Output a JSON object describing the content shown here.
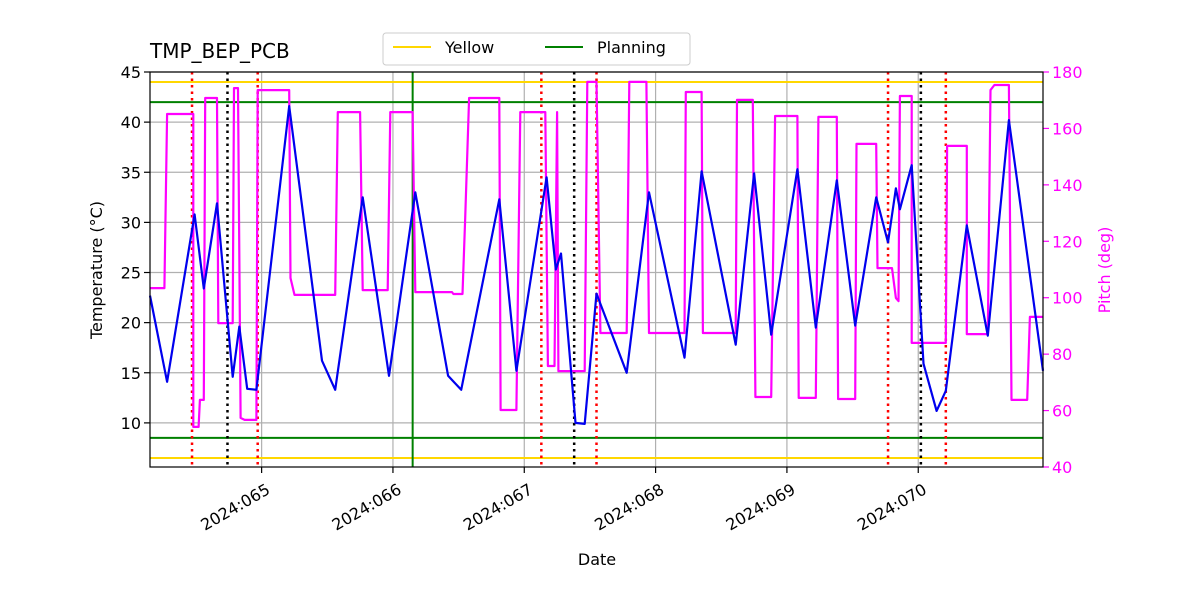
{
  "chart_data": {
    "type": "line",
    "title": "TMP_BEP_PCB",
    "xlabel": "Date",
    "ylabel": "Temperature (°C)",
    "y2label": "Pitch (deg)",
    "y2color": "#ff00ff",
    "xlim": [
      64.15,
      70.95
    ],
    "xticks": [
      {
        "value": 65,
        "label": "2024:065"
      },
      {
        "value": 66,
        "label": "2024:066"
      },
      {
        "value": 67,
        "label": "2024:067"
      },
      {
        "value": 68,
        "label": "2024:068"
      },
      {
        "value": 69,
        "label": "2024:069"
      },
      {
        "value": 70,
        "label": "2024:070"
      }
    ],
    "ylim": [
      5.6,
      45
    ],
    "yticks": [
      10,
      15,
      20,
      25,
      30,
      35,
      40,
      45
    ],
    "y2lim": [
      40,
      180
    ],
    "y2ticks": [
      40,
      60,
      80,
      100,
      120,
      140,
      160,
      180
    ],
    "grid": true,
    "legend": "upper center",
    "hlines": [
      {
        "name": "Yellow",
        "color": "#ffd700",
        "values": [
          44,
          6.5
        ]
      },
      {
        "name": "Planning",
        "color": "#008000",
        "values": [
          42,
          8.5
        ]
      }
    ],
    "vlines": [
      {
        "color": "#008000",
        "style": "solid",
        "x": [
          66.15
        ]
      },
      {
        "color": "#ff0000",
        "style": "dotted",
        "x": [
          64.47,
          64.97,
          67.13,
          67.55,
          69.77,
          70.21
        ]
      },
      {
        "color": "#000000",
        "style": "dotted",
        "x": [
          64.74,
          67.38,
          70.02
        ]
      }
    ],
    "series": [
      {
        "color": "#ff00ff",
        "axis": "y2",
        "x": [
          64.15,
          64.26,
          64.28,
          64.48,
          64.48,
          64.52,
          64.53,
          64.56,
          64.57,
          64.66,
          64.67,
          64.78,
          64.79,
          64.82,
          64.84,
          64.87,
          64.96,
          64.97,
          65.21,
          65.22,
          65.25,
          65.56,
          65.58,
          65.75,
          65.77,
          65.96,
          65.98,
          66.15,
          66.17,
          66.45,
          66.46,
          66.53,
          66.55,
          66.58,
          66.81,
          66.82,
          66.94,
          66.97,
          67.16,
          67.18,
          67.23,
          67.25,
          67.26,
          67.46,
          67.48,
          67.55,
          67.58,
          67.78,
          67.8,
          67.93,
          67.95,
          68.22,
          68.23,
          68.35,
          68.36,
          68.61,
          68.62,
          68.74,
          68.76,
          68.88,
          68.91,
          69.08,
          69.09,
          69.22,
          69.24,
          69.38,
          69.39,
          69.52,
          69.53,
          69.68,
          69.69,
          69.8,
          69.83,
          69.85,
          69.86,
          69.95,
          69.95,
          70.21,
          70.22,
          70.37,
          70.37,
          70.53,
          70.55,
          70.58,
          70.69,
          70.71,
          70.83,
          70.85,
          70.95
        ],
        "values": [
          103.4,
          103.4,
          165.1,
          165.1,
          54.2,
          54.2,
          63.8,
          63.8,
          170.8,
          170.8,
          91.0,
          91.0,
          174.3,
          174.3,
          57.4,
          56.7,
          56.7,
          173.6,
          173.6,
          107.0,
          101.0,
          101.0,
          165.8,
          165.8,
          102.7,
          102.7,
          165.8,
          165.8,
          102.0,
          102.0,
          101.3,
          101.3,
          128.3,
          170.8,
          170.8,
          60.2,
          60.2,
          165.8,
          165.8,
          75.8,
          75.8,
          165.8,
          74.0,
          74.0,
          176.5,
          176.5,
          87.5,
          87.5,
          176.5,
          176.5,
          87.5,
          87.5,
          172.9,
          172.9,
          87.5,
          87.5,
          170.1,
          170.1,
          64.8,
          64.8,
          164.4,
          164.4,
          64.5,
          64.5,
          164.1,
          164.1,
          64.1,
          64.1,
          154.5,
          154.5,
          110.5,
          110.5,
          99.9,
          98.8,
          171.5,
          171.5,
          84.0,
          84.0,
          153.8,
          153.8,
          87.1,
          87.1,
          173.6,
          175.4,
          175.4,
          63.8,
          63.8,
          93.2,
          93.2
        ]
      },
      {
        "color": "#0000ee",
        "axis": "y",
        "x": [
          64.15,
          64.28,
          64.49,
          64.56,
          64.66,
          64.78,
          64.83,
          64.89,
          64.96,
          65.21,
          65.46,
          65.56,
          65.77,
          65.97,
          66.17,
          66.42,
          66.52,
          66.81,
          66.94,
          67.17,
          67.24,
          67.28,
          67.39,
          67.46,
          67.55,
          67.78,
          67.95,
          68.22,
          68.35,
          68.61,
          68.75,
          68.88,
          69.08,
          69.22,
          69.38,
          69.52,
          69.68,
          69.77,
          69.83,
          69.86,
          69.95,
          70.04,
          70.14,
          70.21,
          70.37,
          70.53,
          70.69,
          70.95
        ],
        "values": [
          22.7,
          14.1,
          30.8,
          23.4,
          31.9,
          14.6,
          19.6,
          13.4,
          13.3,
          41.6,
          16.2,
          13.3,
          32.5,
          14.7,
          33.0,
          14.7,
          13.3,
          32.3,
          15.2,
          34.5,
          25.3,
          26.9,
          10.0,
          9.9,
          22.9,
          15.0,
          33.0,
          16.5,
          35.1,
          17.8,
          34.9,
          18.8,
          35.3,
          19.5,
          34.2,
          19.7,
          32.5,
          28.0,
          33.4,
          31.3,
          35.7,
          15.9,
          11.2,
          13.2,
          29.7,
          18.7,
          40.2,
          15.2
        ]
      }
    ]
  }
}
